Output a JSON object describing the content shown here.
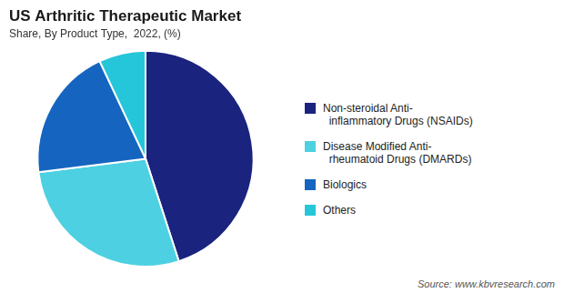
{
  "chart_data": {
    "type": "pie",
    "title": "US Arthritic Therapeutic Market",
    "subtitle": "Share, By Product Type,  2022, (%)",
    "source": "Source: www.kbvresearch.com",
    "categories": [
      "Non-steroidal Anti-\n  inflammatory Drugs (NSAIDs)",
      "Disease Modified Anti-\n  rheumatoid Drugs (DMARDs)",
      "Biologics",
      "Others"
    ],
    "values": [
      45,
      28,
      20,
      7
    ],
    "colors": [
      "#1a237e",
      "#4dd0e1",
      "#1565c0",
      "#26c6da"
    ],
    "legend": "right"
  }
}
